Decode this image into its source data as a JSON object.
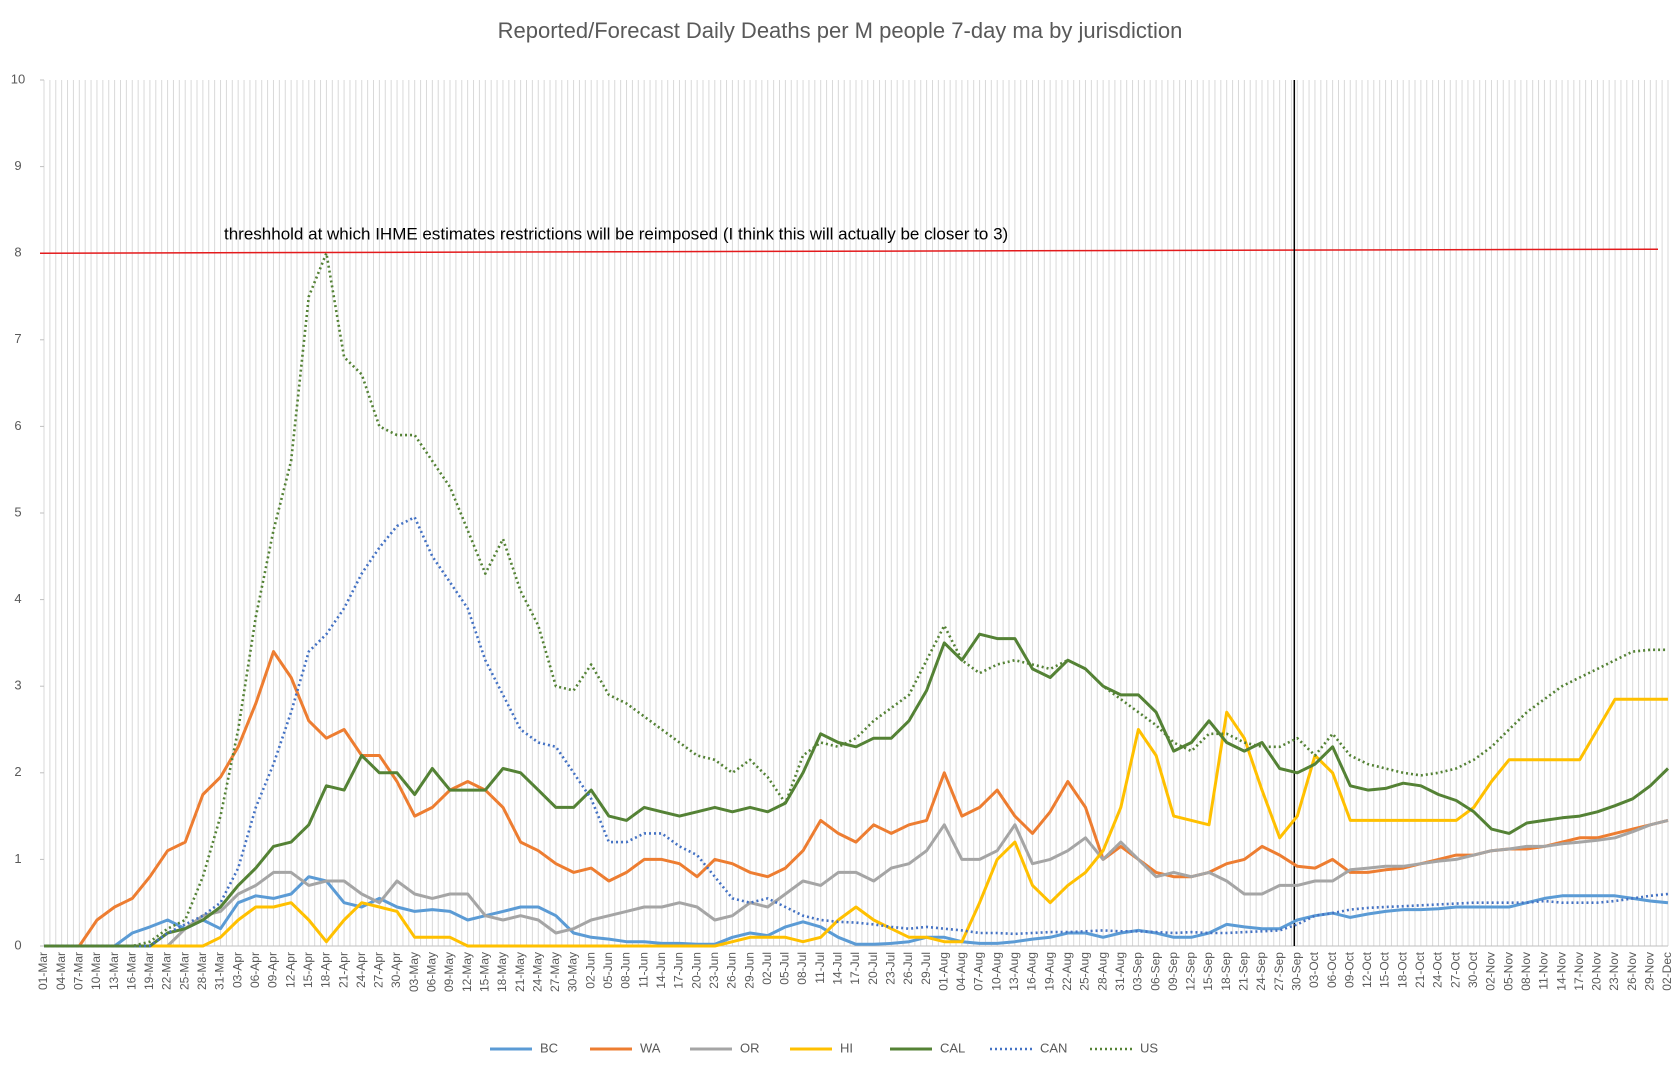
{
  "chart_data": {
    "type": "line",
    "title": "Reported/Forecast Daily Deaths per M people 7-day ma by jurisdiction",
    "categories": [
      "01-Mar",
      "04-Mar",
      "07-Mar",
      "10-Mar",
      "13-Mar",
      "16-Mar",
      "19-Mar",
      "22-Mar",
      "25-Mar",
      "28-Mar",
      "31-Mar",
      "03-Apr",
      "06-Apr",
      "09-Apr",
      "12-Apr",
      "15-Apr",
      "18-Apr",
      "21-Apr",
      "24-Apr",
      "27-Apr",
      "30-Apr",
      "03-May",
      "06-May",
      "09-May",
      "12-May",
      "15-May",
      "18-May",
      "21-May",
      "24-May",
      "27-May",
      "30-May",
      "02-Jun",
      "05-Jun",
      "08-Jun",
      "11-Jun",
      "14-Jun",
      "17-Jun",
      "20-Jun",
      "23-Jun",
      "26-Jun",
      "29-Jun",
      "02-Jul",
      "05-Jul",
      "08-Jul",
      "11-Jul",
      "14-Jul",
      "17-Jul",
      "20-Jul",
      "23-Jul",
      "26-Jul",
      "29-Jul",
      "01-Aug",
      "04-Aug",
      "07-Aug",
      "10-Aug",
      "13-Aug",
      "16-Aug",
      "19-Aug",
      "22-Aug",
      "25-Aug",
      "28-Aug",
      "31-Aug",
      "03-Sep",
      "06-Sep",
      "09-Sep",
      "12-Sep",
      "15-Sep",
      "18-Sep",
      "21-Sep",
      "24-Sep",
      "27-Sep",
      "30-Sep",
      "03-Oct",
      "06-Oct",
      "09-Oct",
      "12-Oct",
      "15-Oct",
      "18-Oct",
      "21-Oct",
      "24-Oct",
      "27-Oct",
      "30-Oct",
      "02-Nov",
      "05-Nov",
      "08-Nov",
      "11-Nov",
      "14-Nov",
      "17-Nov",
      "20-Nov",
      "23-Nov",
      "26-Nov",
      "29-Nov",
      "02-Dec"
    ],
    "series": [
      {
        "name": "BC",
        "color": "#5b9bd5",
        "style": "solid",
        "values": [
          0,
          0,
          0,
          0,
          0,
          0.15,
          0.22,
          0.3,
          0.2,
          0.3,
          0.2,
          0.5,
          0.58,
          0.55,
          0.6,
          0.8,
          0.75,
          0.5,
          0.45,
          0.55,
          0.45,
          0.4,
          0.42,
          0.4,
          0.3,
          0.35,
          0.4,
          0.45,
          0.45,
          0.35,
          0.15,
          0.1,
          0.08,
          0.05,
          0.05,
          0.03,
          0.03,
          0.02,
          0.02,
          0.1,
          0.15,
          0.12,
          0.22,
          0.28,
          0.22,
          0.1,
          0.02,
          0.02,
          0.03,
          0.05,
          0.1,
          0.1,
          0.05,
          0.03,
          0.03,
          0.05,
          0.08,
          0.1,
          0.15,
          0.15,
          0.1,
          0.15,
          0.18,
          0.15,
          0.1,
          0.1,
          0.15,
          0.25,
          0.22,
          0.2,
          0.2,
          0.3,
          0.35,
          0.38,
          0.33,
          0.37,
          0.4,
          0.42,
          0.42,
          0.43,
          0.45,
          0.45,
          0.45,
          0.45,
          0.5,
          0.55,
          0.58,
          0.58,
          0.58,
          0.58,
          0.55,
          0.52,
          0.5
        ]
      },
      {
        "name": "WA",
        "color": "#ed7d31",
        "style": "solid",
        "values": [
          0,
          0,
          0,
          0.3,
          0.45,
          0.55,
          0.8,
          1.1,
          1.2,
          1.75,
          1.95,
          2.3,
          2.8,
          3.4,
          3.1,
          2.6,
          2.4,
          2.5,
          2.2,
          2.2,
          1.9,
          1.5,
          1.6,
          1.8,
          1.9,
          1.8,
          1.6,
          1.2,
          1.1,
          0.95,
          0.85,
          0.9,
          0.75,
          0.85,
          1.0,
          1.0,
          0.95,
          0.8,
          1.0,
          0.95,
          0.85,
          0.8,
          0.9,
          1.1,
          1.45,
          1.3,
          1.2,
          1.4,
          1.3,
          1.4,
          1.45,
          2.0,
          1.5,
          1.6,
          1.8,
          1.5,
          1.3,
          1.55,
          1.9,
          1.6,
          1.0,
          1.15,
          1.0,
          0.85,
          0.8,
          0.8,
          0.85,
          0.95,
          1.0,
          1.15,
          1.05,
          0.92,
          0.9,
          1.0,
          0.85,
          0.85,
          0.88,
          0.9,
          0.95,
          1.0,
          1.05,
          1.05,
          1.1,
          1.12,
          1.12,
          1.15,
          1.2,
          1.25,
          1.25,
          1.3,
          1.35,
          1.4,
          1.45
        ]
      },
      {
        "name": "OR",
        "color": "#a5a5a5",
        "style": "solid",
        "values": [
          0,
          0,
          0,
          0,
          0,
          0,
          0,
          0,
          0.2,
          0.35,
          0.4,
          0.6,
          0.7,
          0.85,
          0.85,
          0.7,
          0.75,
          0.75,
          0.6,
          0.5,
          0.75,
          0.6,
          0.55,
          0.6,
          0.6,
          0.35,
          0.3,
          0.35,
          0.3,
          0.15,
          0.2,
          0.3,
          0.35,
          0.4,
          0.45,
          0.45,
          0.5,
          0.45,
          0.3,
          0.35,
          0.5,
          0.45,
          0.6,
          0.75,
          0.7,
          0.85,
          0.85,
          0.75,
          0.9,
          0.95,
          1.1,
          1.4,
          1.0,
          1.0,
          1.1,
          1.4,
          0.95,
          1.0,
          1.1,
          1.25,
          1.0,
          1.2,
          1.0,
          0.8,
          0.85,
          0.8,
          0.85,
          0.75,
          0.6,
          0.6,
          0.7,
          0.7,
          0.75,
          0.75,
          0.88,
          0.9,
          0.92,
          0.92,
          0.95,
          0.98,
          1.0,
          1.05,
          1.1,
          1.12,
          1.15,
          1.15,
          1.18,
          1.2,
          1.22,
          1.25,
          1.32,
          1.4,
          1.45
        ]
      },
      {
        "name": "HI",
        "color": "#ffc000",
        "style": "solid",
        "values": [
          0,
          0,
          0,
          0,
          0,
          0,
          0,
          0,
          0,
          0,
          0.1,
          0.3,
          0.45,
          0.45,
          0.5,
          0.3,
          0.05,
          0.3,
          0.5,
          0.45,
          0.4,
          0.1,
          0.1,
          0.1,
          0,
          0,
          0,
          0,
          0,
          0,
          0,
          0,
          0,
          0,
          0,
          0,
          0,
          0,
          0,
          0.05,
          0.1,
          0.1,
          0.1,
          0.05,
          0.1,
          0.3,
          0.45,
          0.3,
          0.2,
          0.1,
          0.1,
          0.05,
          0.05,
          0.5,
          1.0,
          1.2,
          0.7,
          0.5,
          0.7,
          0.85,
          1.1,
          1.6,
          2.5,
          2.2,
          1.5,
          1.45,
          1.4,
          2.7,
          2.4,
          1.8,
          1.25,
          1.5,
          2.2,
          2.0,
          1.45,
          1.45,
          1.45,
          1.45,
          1.45,
          1.45,
          1.45,
          1.6,
          1.9,
          2.15,
          2.15,
          2.15,
          2.15,
          2.15,
          2.5,
          2.85,
          2.85,
          2.85,
          2.85
        ]
      },
      {
        "name": "CAL",
        "color": "#548235",
        "style": "solid",
        "values": [
          0,
          0,
          0,
          0,
          0,
          0,
          0,
          0.15,
          0.2,
          0.3,
          0.45,
          0.7,
          0.9,
          1.15,
          1.2,
          1.4,
          1.85,
          1.8,
          2.2,
          2.0,
          2.0,
          1.75,
          2.05,
          1.8,
          1.8,
          1.8,
          2.05,
          2.0,
          1.8,
          1.6,
          1.6,
          1.8,
          1.5,
          1.45,
          1.6,
          1.55,
          1.5,
          1.55,
          1.6,
          1.55,
          1.6,
          1.55,
          1.65,
          2.0,
          2.45,
          2.35,
          2.3,
          2.4,
          2.4,
          2.6,
          2.95,
          3.5,
          3.3,
          3.6,
          3.55,
          3.55,
          3.2,
          3.1,
          3.3,
          3.2,
          3.0,
          2.9,
          2.9,
          2.7,
          2.25,
          2.35,
          2.6,
          2.35,
          2.25,
          2.35,
          2.05,
          2.0,
          2.1,
          2.3,
          1.85,
          1.8,
          1.82,
          1.88,
          1.85,
          1.75,
          1.68,
          1.55,
          1.35,
          1.3,
          1.42,
          1.45,
          1.48,
          1.5,
          1.55,
          1.62,
          1.7,
          1.85,
          2.05
        ]
      },
      {
        "name": "CAN",
        "color": "#4472c4",
        "style": "dotted",
        "values": [
          0,
          0,
          0,
          0,
          0,
          0,
          0,
          0.15,
          0.25,
          0.35,
          0.5,
          0.9,
          1.6,
          2.1,
          2.7,
          3.4,
          3.6,
          3.9,
          4.3,
          4.6,
          4.85,
          4.95,
          4.5,
          4.2,
          3.9,
          3.3,
          2.9,
          2.5,
          2.35,
          2.3,
          2.0,
          1.7,
          1.2,
          1.2,
          1.3,
          1.3,
          1.15,
          1.05,
          0.8,
          0.55,
          0.5,
          0.55,
          0.45,
          0.35,
          0.3,
          0.28,
          0.27,
          0.25,
          0.22,
          0.2,
          0.22,
          0.2,
          0.18,
          0.15,
          0.15,
          0.14,
          0.15,
          0.16,
          0.16,
          0.17,
          0.18,
          0.17,
          0.17,
          0.16,
          0.15,
          0.16,
          0.15,
          0.15,
          0.16,
          0.17,
          0.18,
          0.25,
          0.35,
          0.38,
          0.42,
          0.44,
          0.45,
          0.46,
          0.47,
          0.48,
          0.49,
          0.5,
          0.5,
          0.5,
          0.5,
          0.52,
          0.5,
          0.5,
          0.5,
          0.52,
          0.55,
          0.58,
          0.6
        ]
      },
      {
        "name": "US",
        "color": "#548235",
        "style": "dotted",
        "values": [
          0,
          0,
          0,
          0,
          0,
          0,
          0.05,
          0.2,
          0.3,
          0.8,
          1.5,
          2.5,
          3.8,
          4.8,
          5.6,
          7.5,
          8.0,
          6.8,
          6.6,
          6.0,
          5.9,
          5.9,
          5.6,
          5.3,
          4.8,
          4.3,
          4.7,
          4.1,
          3.7,
          3.0,
          2.95,
          3.25,
          2.9,
          2.8,
          2.65,
          2.5,
          2.35,
          2.2,
          2.15,
          2.0,
          2.15,
          1.95,
          1.65,
          2.2,
          2.35,
          2.3,
          2.4,
          2.6,
          2.75,
          2.9,
          3.3,
          3.7,
          3.3,
          3.15,
          3.25,
          3.3,
          3.25,
          3.2,
          3.3,
          3.2,
          3.0,
          2.85,
          2.7,
          2.55,
          2.35,
          2.25,
          2.45,
          2.45,
          2.35,
          2.3,
          2.3,
          2.4,
          2.2,
          2.45,
          2.2,
          2.1,
          2.05,
          2.0,
          1.97,
          2.0,
          2.05,
          2.15,
          2.3,
          2.5,
          2.7,
          2.85,
          3.0,
          3.1,
          3.2,
          3.3,
          3.4,
          3.42,
          3.42
        ]
      }
    ],
    "ylim": [
      0,
      10
    ],
    "yticks": [
      0,
      1,
      2,
      3,
      4,
      5,
      6,
      7,
      8,
      9,
      10
    ],
    "grid": "vertical",
    "reference_line": {
      "value": 8,
      "label": "threshhold at which IHME estimates restrictions will be reimposed (I think this will actually be closer to 3)",
      "color": "#e31a1c"
    },
    "marker_date": "30-Sep",
    "legend": "bottom"
  }
}
